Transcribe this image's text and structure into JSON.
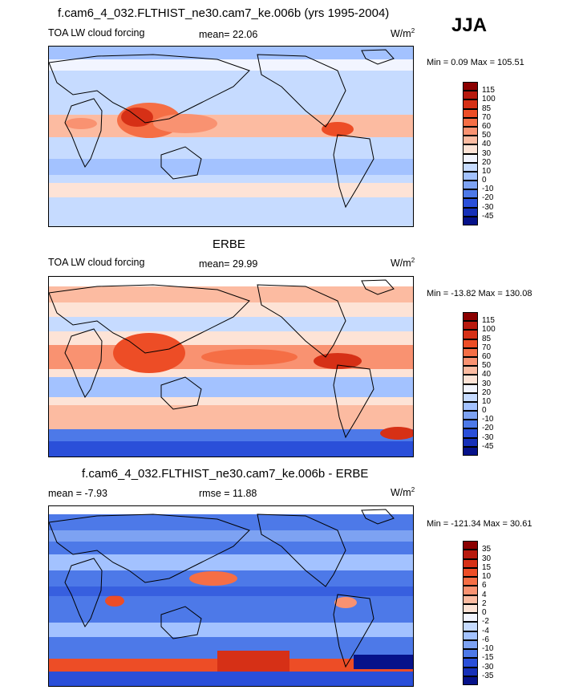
{
  "season": "JJA",
  "panels": [
    {
      "title": "f.cam6_4_032.FLTHIST_ne30.cam7_ke.006b (yrs 1995-2004)",
      "left_label": "TOA LW cloud forcing",
      "center_label": "mean=  22.06",
      "units": "W/m",
      "units_sup": "2",
      "minmax": "Min =   0.09 Max = 105.51",
      "colorbar": {
        "labels": [
          "115",
          "100",
          "85",
          "70",
          "60",
          "50",
          "40",
          "30",
          "20",
          "10",
          "0",
          "-10",
          "-20",
          "-30",
          "-45"
        ],
        "colors": [
          "#8b0000",
          "#b81a0e",
          "#d63016",
          "#ed4d26",
          "#f56e45",
          "#f99271",
          "#fcbba1",
          "#fde3d6",
          "#f2f5ff",
          "#c6dbff",
          "#a3c2ff",
          "#7da2f2",
          "#4d79e8",
          "#2a4fd9",
          "#1630b8",
          "#06128a"
        ]
      }
    },
    {
      "title": "ERBE",
      "left_label": "TOA LW cloud forcing",
      "center_label": "mean=  29.99",
      "units": "W/m",
      "units_sup": "2",
      "minmax": "Min = -13.82 Max = 130.08",
      "colorbar": {
        "labels": [
          "115",
          "100",
          "85",
          "70",
          "60",
          "50",
          "40",
          "30",
          "20",
          "10",
          "0",
          "-10",
          "-20",
          "-30",
          "-45"
        ],
        "colors": [
          "#8b0000",
          "#b81a0e",
          "#d63016",
          "#ed4d26",
          "#f56e45",
          "#f99271",
          "#fcbba1",
          "#fde3d6",
          "#f2f5ff",
          "#c6dbff",
          "#a3c2ff",
          "#7da2f2",
          "#4d79e8",
          "#2a4fd9",
          "#1630b8",
          "#06128a"
        ]
      }
    },
    {
      "title": "f.cam6_4_032.FLTHIST_ne30.cam7_ke.006b - ERBE",
      "left_label": "mean =  -7.93",
      "center_label": "rmse =  11.88",
      "units": "W/m",
      "units_sup": "2",
      "minmax": "Min = -121.34 Max =  30.61",
      "colorbar": {
        "labels": [
          "35",
          "30",
          "15",
          "10",
          "6",
          "4",
          "2",
          "0",
          "-2",
          "-4",
          "-6",
          "-10",
          "-15",
          "-30",
          "-35"
        ],
        "colors": [
          "#8b0000",
          "#b81a0e",
          "#d63016",
          "#ed4d26",
          "#f56e45",
          "#f99271",
          "#fcbba1",
          "#fde3d6",
          "#f2f5ff",
          "#c6dbff",
          "#a3c2ff",
          "#7da2f2",
          "#4d79e8",
          "#2a4fd9",
          "#1630b8",
          "#06128a"
        ]
      }
    }
  ]
}
